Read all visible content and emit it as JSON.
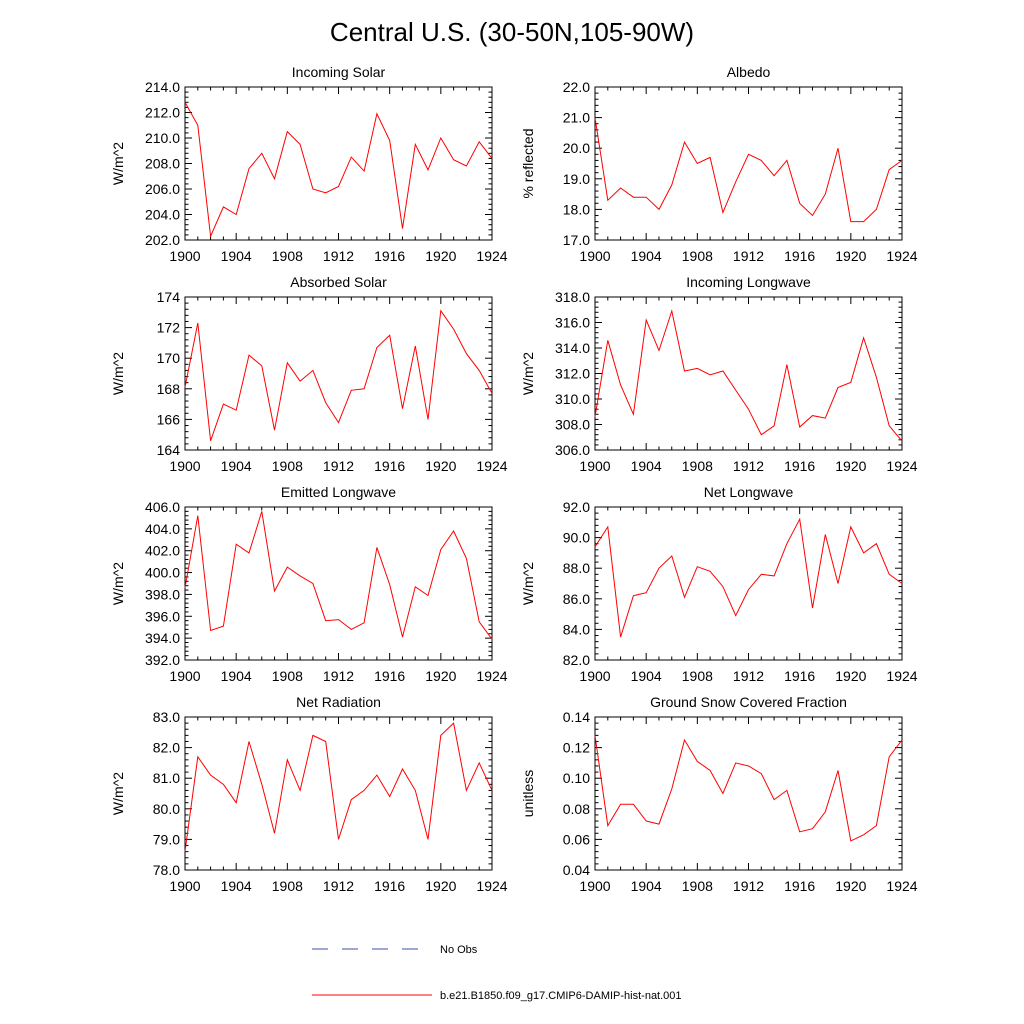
{
  "page_title": "Central U.S. (30-50N,105-90W)",
  "legend": {
    "items": [
      {
        "label": "No Obs",
        "color": "#3b4fa8",
        "dashed": true
      },
      {
        "label": "b.e21.B1850.f09_g17.CMIP6-DAMIP-hist-nat.001",
        "color": "#ff0000",
        "dashed": false
      }
    ]
  },
  "chart_data": [
    {
      "type": "line",
      "title": "Incoming Solar",
      "ylabel": "W/m^2",
      "xlim": [
        1900,
        1924
      ],
      "ylim": [
        202,
        214
      ],
      "xticks": [
        "1900",
        "1904",
        "1908",
        "1912",
        "1916",
        "1920",
        "1924"
      ],
      "yticks": [
        "202.0",
        "204.0",
        "206.0",
        "208.0",
        "210.0",
        "212.0",
        "214.0"
      ],
      "series": [
        {
          "color": "#ff0000",
          "x": [
            1900,
            1901,
            1902,
            1903,
            1904,
            1905,
            1906,
            1907,
            1908,
            1909,
            1910,
            1911,
            1912,
            1913,
            1914,
            1915,
            1916,
            1917,
            1918,
            1919,
            1920,
            1921,
            1922,
            1923,
            1924
          ],
          "values": [
            212.8,
            211.0,
            202.3,
            204.6,
            204.0,
            207.6,
            208.8,
            206.8,
            210.5,
            209.5,
            206.0,
            205.7,
            206.2,
            208.5,
            207.4,
            211.9,
            209.8,
            202.9,
            209.5,
            207.5,
            210.0,
            208.3,
            207.8,
            209.7,
            208.4
          ]
        }
      ]
    },
    {
      "type": "line",
      "title": "Albedo",
      "ylabel": "% reflected",
      "xlim": [
        1900,
        1924
      ],
      "ylim": [
        17,
        22
      ],
      "xticks": [
        "1900",
        "1904",
        "1908",
        "1912",
        "1916",
        "1920",
        "1924"
      ],
      "yticks": [
        "17.0",
        "18.0",
        "19.0",
        "20.0",
        "21.0",
        "22.0"
      ],
      "series": [
        {
          "color": "#ff0000",
          "x": [
            1900,
            1901,
            1902,
            1903,
            1904,
            1905,
            1906,
            1907,
            1908,
            1909,
            1910,
            1911,
            1912,
            1913,
            1914,
            1915,
            1916,
            1917,
            1918,
            1919,
            1920,
            1921,
            1922,
            1923,
            1924
          ],
          "values": [
            21.0,
            18.3,
            18.7,
            18.4,
            18.4,
            18.0,
            18.8,
            20.2,
            19.5,
            19.7,
            17.9,
            18.9,
            19.8,
            19.6,
            19.1,
            19.6,
            18.2,
            17.8,
            18.5,
            20.0,
            17.6,
            17.6,
            18.0,
            19.3,
            19.6
          ]
        }
      ]
    },
    {
      "type": "line",
      "title": "Absorbed Solar",
      "ylabel": "W/m^2",
      "xlim": [
        1900,
        1924
      ],
      "ylim": [
        164,
        174
      ],
      "xticks": [
        "1900",
        "1904",
        "1908",
        "1912",
        "1916",
        "1920",
        "1924"
      ],
      "yticks": [
        "164",
        "166",
        "168",
        "170",
        "172",
        "174"
      ],
      "series": [
        {
          "color": "#ff0000",
          "x": [
            1900,
            1901,
            1902,
            1903,
            1904,
            1905,
            1906,
            1907,
            1908,
            1909,
            1910,
            1911,
            1912,
            1913,
            1914,
            1915,
            1916,
            1917,
            1918,
            1919,
            1920,
            1921,
            1922,
            1923,
            1924
          ],
          "values": [
            168.1,
            172.3,
            164.6,
            167.0,
            166.6,
            170.2,
            169.5,
            165.3,
            169.7,
            168.5,
            169.2,
            167.1,
            165.8,
            167.9,
            168.0,
            170.7,
            171.5,
            166.7,
            170.8,
            166.0,
            173.1,
            171.9,
            170.3,
            169.2,
            167.7
          ]
        }
      ]
    },
    {
      "type": "line",
      "title": "Incoming Longwave",
      "ylabel": "W/m^2",
      "xlim": [
        1900,
        1924
      ],
      "ylim": [
        306,
        318
      ],
      "xticks": [
        "1900",
        "1904",
        "1908",
        "1912",
        "1916",
        "1920",
        "1924"
      ],
      "yticks": [
        "306.0",
        "308.0",
        "310.0",
        "312.0",
        "314.0",
        "316.0",
        "318.0"
      ],
      "series": [
        {
          "color": "#ff0000",
          "x": [
            1900,
            1901,
            1902,
            1903,
            1904,
            1905,
            1906,
            1907,
            1908,
            1909,
            1910,
            1911,
            1912,
            1913,
            1914,
            1915,
            1916,
            1917,
            1918,
            1919,
            1920,
            1921,
            1922,
            1923,
            1924
          ],
          "values": [
            308.6,
            314.6,
            311.1,
            308.8,
            316.2,
            313.8,
            316.9,
            312.2,
            312.4,
            311.9,
            312.2,
            310.7,
            309.2,
            307.2,
            307.9,
            312.7,
            307.8,
            308.7,
            308.5,
            310.9,
            311.3,
            314.8,
            311.7,
            307.9,
            306.7
          ]
        }
      ]
    },
    {
      "type": "line",
      "title": "Emitted Longwave",
      "ylabel": "W/m^2",
      "xlim": [
        1900,
        1924
      ],
      "ylim": [
        392,
        406
      ],
      "xticks": [
        "1900",
        "1904",
        "1908",
        "1912",
        "1916",
        "1920",
        "1924"
      ],
      "yticks": [
        "392.0",
        "394.0",
        "396.0",
        "398.0",
        "400.0",
        "402.0",
        "404.0",
        "406.0"
      ],
      "series": [
        {
          "color": "#ff0000",
          "x": [
            1900,
            1901,
            1902,
            1903,
            1904,
            1905,
            1906,
            1907,
            1908,
            1909,
            1910,
            1911,
            1912,
            1913,
            1914,
            1915,
            1916,
            1917,
            1918,
            1919,
            1920,
            1921,
            1922,
            1923,
            1924
          ],
          "values": [
            398.6,
            405.2,
            394.7,
            395.1,
            402.6,
            401.8,
            405.6,
            398.3,
            400.5,
            399.7,
            399.0,
            395.6,
            395.7,
            394.8,
            395.4,
            402.3,
            398.9,
            394.1,
            398.7,
            397.9,
            402.1,
            403.8,
            401.3,
            395.5,
            393.9
          ]
        }
      ]
    },
    {
      "type": "line",
      "title": "Net Longwave",
      "ylabel": "W/m^2",
      "xlim": [
        1900,
        1924
      ],
      "ylim": [
        82,
        92
      ],
      "xticks": [
        "1900",
        "1904",
        "1908",
        "1912",
        "1916",
        "1920",
        "1924"
      ],
      "yticks": [
        "82.0",
        "84.0",
        "86.0",
        "88.0",
        "90.0",
        "92.0"
      ],
      "series": [
        {
          "color": "#ff0000",
          "x": [
            1900,
            1901,
            1902,
            1903,
            1904,
            1905,
            1906,
            1907,
            1908,
            1909,
            1910,
            1911,
            1912,
            1913,
            1914,
            1915,
            1916,
            1917,
            1918,
            1919,
            1920,
            1921,
            1922,
            1923,
            1924
          ],
          "values": [
            89.4,
            90.7,
            83.5,
            86.2,
            86.4,
            88.0,
            88.8,
            86.1,
            88.1,
            87.8,
            86.8,
            84.9,
            86.6,
            87.6,
            87.5,
            89.6,
            91.2,
            85.4,
            90.2,
            87.0,
            90.7,
            89.0,
            89.6,
            87.6,
            87.0
          ]
        }
      ]
    },
    {
      "type": "line",
      "title": "Net Radiation",
      "ylabel": "W/m^2",
      "xlim": [
        1900,
        1924
      ],
      "ylim": [
        78,
        83
      ],
      "xticks": [
        "1900",
        "1904",
        "1908",
        "1912",
        "1916",
        "1920",
        "1924"
      ],
      "yticks": [
        "78.0",
        "79.0",
        "80.0",
        "81.0",
        "82.0",
        "83.0"
      ],
      "series": [
        {
          "color": "#ff0000",
          "x": [
            1900,
            1901,
            1902,
            1903,
            1904,
            1905,
            1906,
            1907,
            1908,
            1909,
            1910,
            1911,
            1912,
            1913,
            1914,
            1915,
            1916,
            1917,
            1918,
            1919,
            1920,
            1921,
            1922,
            1923,
            1924
          ],
          "values": [
            78.6,
            81.7,
            81.1,
            80.8,
            80.2,
            82.2,
            80.8,
            79.2,
            81.6,
            80.6,
            82.4,
            82.2,
            79.0,
            80.3,
            80.6,
            81.1,
            80.4,
            81.3,
            80.6,
            79.0,
            82.4,
            82.8,
            80.6,
            81.5,
            80.6
          ]
        }
      ]
    },
    {
      "type": "line",
      "title": "Ground Snow Covered Fraction",
      "ylabel": "unitless",
      "xlim": [
        1900,
        1924
      ],
      "ylim": [
        0.04,
        0.14
      ],
      "xticks": [
        "1900",
        "1904",
        "1908",
        "1912",
        "1916",
        "1920",
        "1924"
      ],
      "yticks": [
        "0.04",
        "0.06",
        "0.08",
        "0.10",
        "0.12",
        "0.14"
      ],
      "series": [
        {
          "color": "#ff0000",
          "x": [
            1900,
            1901,
            1902,
            1903,
            1904,
            1905,
            1906,
            1907,
            1908,
            1909,
            1910,
            1911,
            1912,
            1913,
            1914,
            1915,
            1916,
            1917,
            1918,
            1919,
            1920,
            1921,
            1922,
            1923,
            1924
          ],
          "values": [
            0.128,
            0.069,
            0.083,
            0.083,
            0.072,
            0.07,
            0.093,
            0.125,
            0.111,
            0.105,
            0.09,
            0.11,
            0.108,
            0.103,
            0.086,
            0.092,
            0.065,
            0.067,
            0.078,
            0.105,
            0.059,
            0.063,
            0.069,
            0.114,
            0.125
          ]
        }
      ]
    }
  ]
}
